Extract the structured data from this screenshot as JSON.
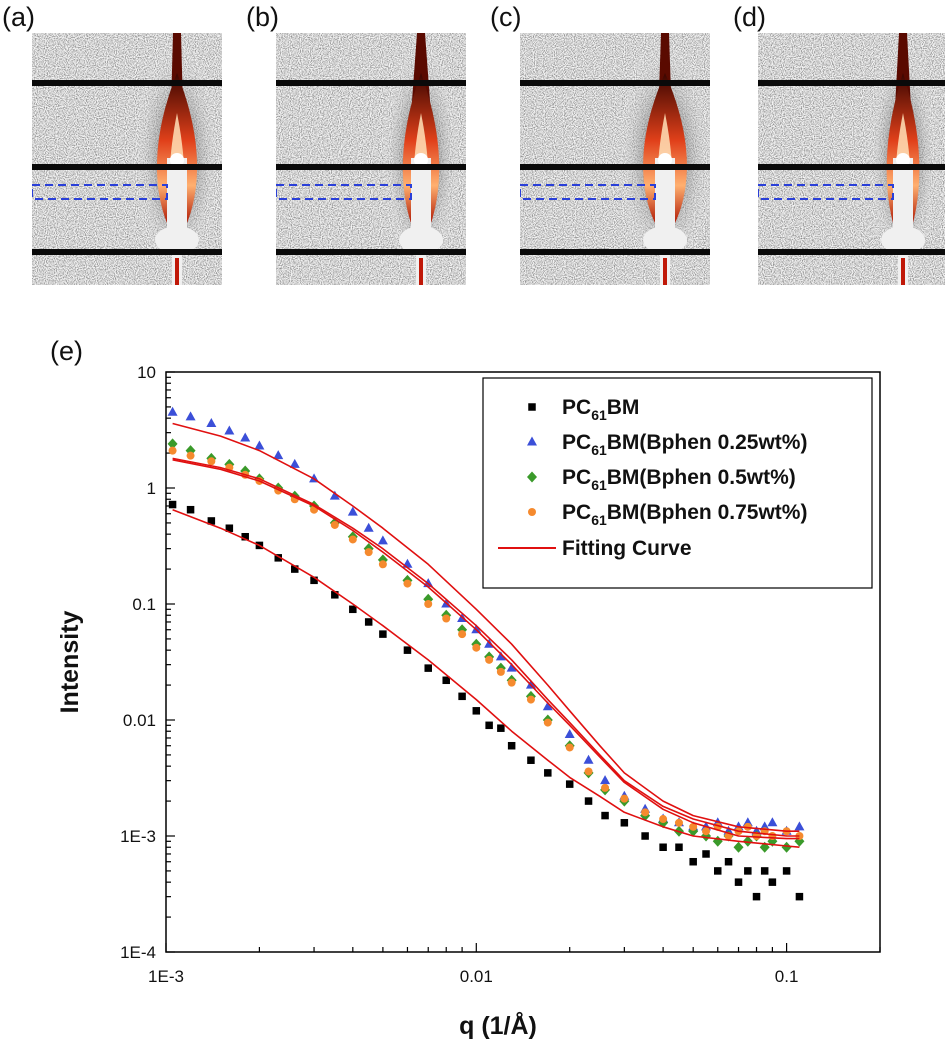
{
  "panels": [
    {
      "label": "(a)"
    },
    {
      "label": "(b)"
    },
    {
      "label": "(c)"
    },
    {
      "label": "(d)"
    }
  ],
  "main_panel_label": "(e)",
  "chart_data": {
    "type": "scatter",
    "xlabel": "q (1/Å)",
    "ylabel": "Intensity",
    "xscale": "log",
    "yscale": "log",
    "xlim": [
      0.001,
      0.2
    ],
    "ylim": [
      0.0001,
      10
    ],
    "xticks": [
      {
        "value": 0.001,
        "label": "1E-3"
      },
      {
        "value": 0.01,
        "label": "0.01"
      },
      {
        "value": 0.1,
        "label": "0.1"
      }
    ],
    "yticks": [
      {
        "value": 0.0001,
        "label": "1E-4"
      },
      {
        "value": 0.001,
        "label": "1E-3"
      },
      {
        "value": 0.01,
        "label": "0.01"
      },
      {
        "value": 0.1,
        "label": "0.1"
      },
      {
        "value": 1,
        "label": "1"
      },
      {
        "value": 10,
        "label": "10"
      }
    ],
    "legend_position": "top-right",
    "series": [
      {
        "name_base": "PC",
        "name_sub": "61",
        "name_rest": "BM",
        "marker": "square",
        "color": "#000000",
        "x": [
          0.00105,
          0.0012,
          0.0014,
          0.0016,
          0.0018,
          0.002,
          0.0023,
          0.0026,
          0.003,
          0.0035,
          0.004,
          0.0045,
          0.005,
          0.006,
          0.007,
          0.008,
          0.009,
          0.01,
          0.011,
          0.012,
          0.013,
          0.015,
          0.017,
          0.02,
          0.023,
          0.026,
          0.03,
          0.035,
          0.04,
          0.045,
          0.05,
          0.055,
          0.06,
          0.065,
          0.07,
          0.075,
          0.08,
          0.085,
          0.09,
          0.1,
          0.11
        ],
        "y": [
          0.72,
          0.65,
          0.52,
          0.45,
          0.38,
          0.32,
          0.25,
          0.2,
          0.16,
          0.12,
          0.09,
          0.07,
          0.055,
          0.04,
          0.028,
          0.022,
          0.016,
          0.012,
          0.009,
          0.0085,
          0.006,
          0.0045,
          0.0035,
          0.0028,
          0.002,
          0.0015,
          0.0013,
          0.001,
          0.0008,
          0.0008,
          0.0006,
          0.0007,
          0.0005,
          0.0006,
          0.0004,
          0.0005,
          0.0003,
          0.0005,
          0.0004,
          0.0005,
          0.0003
        ]
      },
      {
        "name_base": "PC",
        "name_sub": "61",
        "name_rest": "BM(Bphen 0.25wt%)",
        "marker": "triangle",
        "color": "#3b4fd8",
        "x": [
          0.00105,
          0.0012,
          0.0014,
          0.0016,
          0.0018,
          0.002,
          0.0023,
          0.0026,
          0.003,
          0.0035,
          0.004,
          0.0045,
          0.005,
          0.006,
          0.007,
          0.008,
          0.009,
          0.01,
          0.011,
          0.012,
          0.013,
          0.015,
          0.017,
          0.02,
          0.023,
          0.026,
          0.03,
          0.035,
          0.04,
          0.045,
          0.05,
          0.055,
          0.06,
          0.065,
          0.07,
          0.075,
          0.08,
          0.085,
          0.09,
          0.1,
          0.11
        ],
        "y": [
          4.5,
          4.1,
          3.6,
          3.1,
          2.7,
          2.3,
          1.9,
          1.6,
          1.2,
          0.85,
          0.62,
          0.45,
          0.35,
          0.22,
          0.15,
          0.1,
          0.075,
          0.06,
          0.045,
          0.035,
          0.028,
          0.02,
          0.013,
          0.0075,
          0.0045,
          0.003,
          0.0022,
          0.0017,
          0.0014,
          0.0013,
          0.0012,
          0.0012,
          0.0013,
          0.0011,
          0.0012,
          0.0013,
          0.0011,
          0.0012,
          0.0013,
          0.0011,
          0.0012
        ]
      },
      {
        "name_base": "PC",
        "name_sub": "61",
        "name_rest": "BM(Bphen 0.5wt%)",
        "marker": "diamond",
        "color": "#3a9a2a",
        "x": [
          0.00105,
          0.0012,
          0.0014,
          0.0016,
          0.0018,
          0.002,
          0.0023,
          0.0026,
          0.003,
          0.0035,
          0.004,
          0.0045,
          0.005,
          0.006,
          0.007,
          0.008,
          0.009,
          0.01,
          0.011,
          0.012,
          0.013,
          0.015,
          0.017,
          0.02,
          0.023,
          0.026,
          0.03,
          0.035,
          0.04,
          0.045,
          0.05,
          0.055,
          0.06,
          0.065,
          0.07,
          0.075,
          0.08,
          0.085,
          0.09,
          0.1,
          0.11
        ],
        "y": [
          2.4,
          2.1,
          1.8,
          1.6,
          1.4,
          1.2,
          1.0,
          0.85,
          0.7,
          0.5,
          0.38,
          0.3,
          0.24,
          0.16,
          0.11,
          0.08,
          0.06,
          0.045,
          0.035,
          0.028,
          0.022,
          0.016,
          0.01,
          0.006,
          0.0035,
          0.0025,
          0.002,
          0.0015,
          0.0013,
          0.0011,
          0.0011,
          0.001,
          0.0009,
          0.001,
          0.0008,
          0.0009,
          0.001,
          0.0008,
          0.0009,
          0.0008,
          0.0009
        ]
      },
      {
        "name_base": "PC",
        "name_sub": "61",
        "name_rest": "BM(Bphen 0.75wt%)",
        "marker": "circle",
        "color": "#f58a2e",
        "x": [
          0.00105,
          0.0012,
          0.0014,
          0.0016,
          0.0018,
          0.002,
          0.0023,
          0.0026,
          0.003,
          0.0035,
          0.004,
          0.0045,
          0.005,
          0.006,
          0.007,
          0.008,
          0.009,
          0.01,
          0.011,
          0.012,
          0.013,
          0.015,
          0.017,
          0.02,
          0.023,
          0.026,
          0.03,
          0.035,
          0.04,
          0.045,
          0.05,
          0.055,
          0.06,
          0.065,
          0.07,
          0.075,
          0.08,
          0.085,
          0.09,
          0.1,
          0.11
        ],
        "y": [
          2.1,
          1.9,
          1.7,
          1.5,
          1.3,
          1.15,
          0.95,
          0.8,
          0.65,
          0.48,
          0.36,
          0.28,
          0.22,
          0.15,
          0.1,
          0.075,
          0.055,
          0.042,
          0.033,
          0.026,
          0.021,
          0.015,
          0.0095,
          0.0058,
          0.0036,
          0.0026,
          0.0021,
          0.0016,
          0.0014,
          0.0013,
          0.0012,
          0.0011,
          0.0012,
          0.001,
          0.0011,
          0.0012,
          0.001,
          0.0011,
          0.001,
          0.0011,
          0.001
        ]
      }
    ],
    "fit_curves": {
      "name": "Fitting Curve",
      "color": "#e01010",
      "x": [
        0.00105,
        0.0015,
        0.002,
        0.003,
        0.004,
        0.005,
        0.007,
        0.01,
        0.013,
        0.017,
        0.02,
        0.025,
        0.03,
        0.04,
        0.05,
        0.07,
        0.1,
        0.11
      ],
      "y_sets": [
        [
          0.65,
          0.45,
          0.32,
          0.17,
          0.1,
          0.065,
          0.033,
          0.015,
          0.008,
          0.0045,
          0.0032,
          0.0022,
          0.0016,
          0.0012,
          0.001,
          0.0009,
          0.00082,
          0.0008
        ],
        [
          3.6,
          2.8,
          2.1,
          1.2,
          0.7,
          0.45,
          0.22,
          0.09,
          0.045,
          0.02,
          0.012,
          0.006,
          0.0035,
          0.002,
          0.0015,
          0.0012,
          0.0011,
          0.0011
        ],
        [
          1.8,
          1.5,
          1.2,
          0.72,
          0.45,
          0.3,
          0.15,
          0.065,
          0.033,
          0.015,
          0.0095,
          0.005,
          0.003,
          0.0018,
          0.0014,
          0.0011,
          0.001,
          0.001
        ],
        [
          1.75,
          1.45,
          1.15,
          0.7,
          0.43,
          0.28,
          0.14,
          0.06,
          0.03,
          0.014,
          0.009,
          0.0048,
          0.0029,
          0.0017,
          0.0013,
          0.001,
          0.00095,
          0.00095
        ]
      ]
    }
  }
}
